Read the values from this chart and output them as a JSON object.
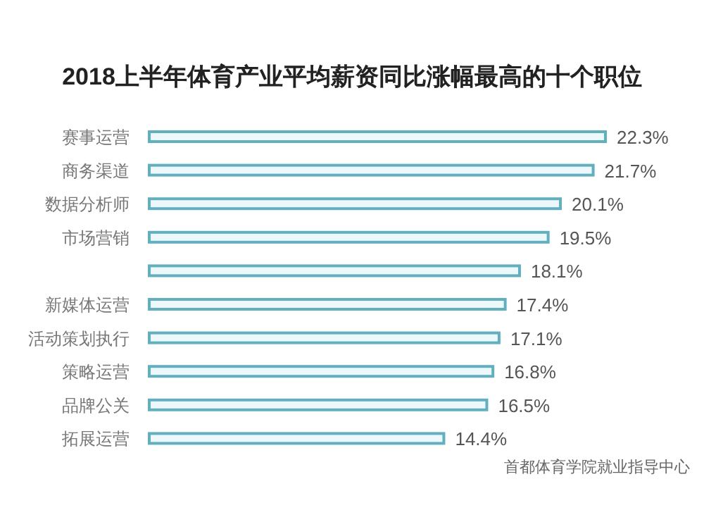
{
  "chart_data": {
    "type": "bar",
    "orientation": "horizontal",
    "title": "2018上半年体育产业平均薪资同比涨幅最高的十个职位",
    "categories": [
      "赛事运营",
      "商务渠道",
      "数据分析师",
      "市场营销",
      null,
      "新媒体运营",
      "活动策划执行",
      "策略运营",
      "品牌公关",
      "拓展运营"
    ],
    "values": [
      22.3,
      21.7,
      20.1,
      19.5,
      18.1,
      17.4,
      17.1,
      16.8,
      16.5,
      14.4
    ],
    "value_labels": [
      "22.3%",
      "21.7%",
      "20.1%",
      "19.5%",
      "18.1%",
      "17.4%",
      "17.1%",
      "16.8%",
      "16.5%",
      "14.4%"
    ],
    "color": "#5fb0c0",
    "annotations": [
      "首都体育学院就业指导中心"
    ]
  }
}
